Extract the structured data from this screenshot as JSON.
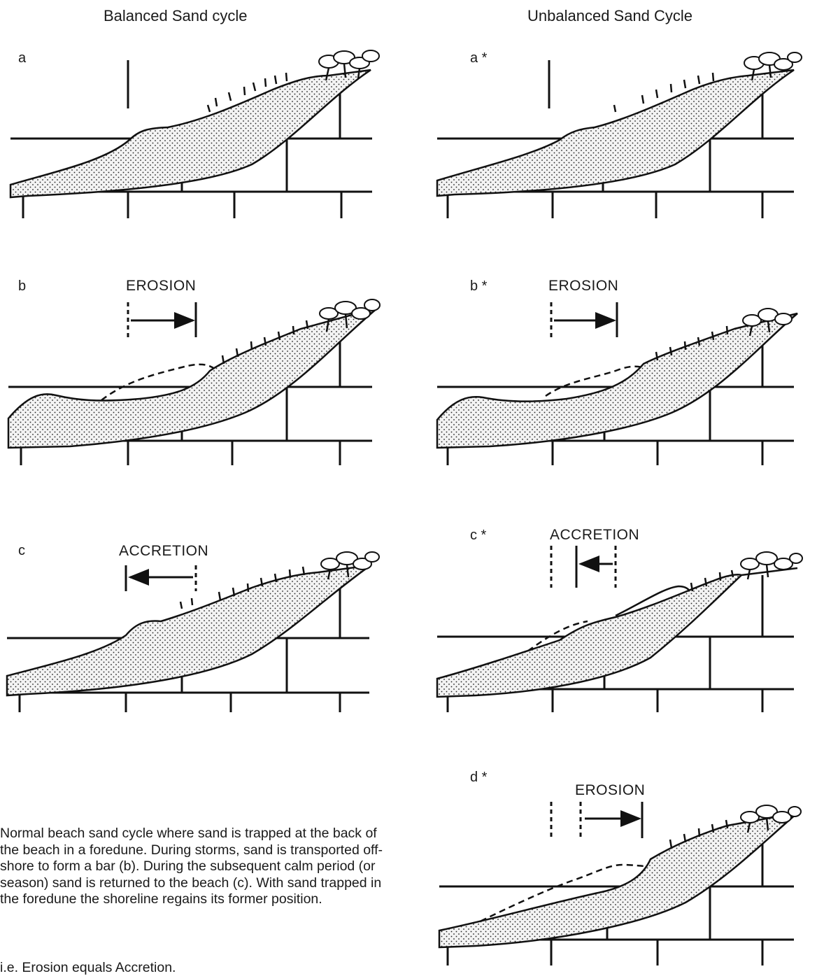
{
  "titles": {
    "balanced": "Balanced Sand cycle",
    "unbalanced": "Unbalanced Sand Cycle"
  },
  "panels": {
    "a": "a",
    "b": "b",
    "c": "c",
    "a_star": "a *",
    "b_star": "b *",
    "c_star": "c *",
    "d_star": "d *"
  },
  "annotations": {
    "b": "EROSION",
    "c": "ACCRETION",
    "b_star": "EROSION",
    "c_star": "ACCRETION",
    "d_star": "EROSION"
  },
  "caption": "Normal beach sand cycle where sand is trapped at the back of the beach in a foredune. During storms, sand is transported off-shore to form a bar (b). During the subsequent calm period (or season) sand is returned to the beach (c). With sand trapped in the foredune the shoreline regains its former position.",
  "note": "i.e. Erosion equals Accretion."
}
